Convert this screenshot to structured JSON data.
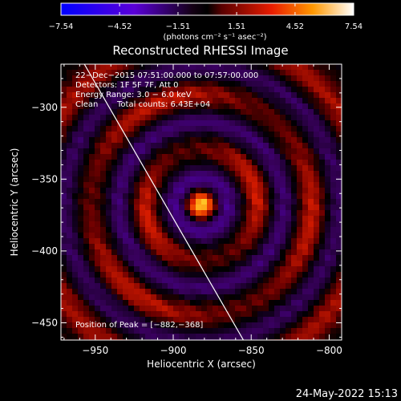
{
  "window": {
    "timestamp": "24-May-2022 15:13"
  },
  "colorbar": {
    "tick_labels": [
      "−7.54",
      "−4.52",
      "−1.51",
      "1.51",
      "4.52",
      "7.54"
    ],
    "ticks": [
      -7.54,
      -4.52,
      -1.51,
      1.51,
      4.52,
      7.54
    ],
    "range": [
      -7.54,
      7.54
    ],
    "label": "(photons cm⁻² s⁻¹ asec⁻²)",
    "colormap": "blue-black-red-yellow-white"
  },
  "chart_data": {
    "type": "heatmap",
    "title": "Reconstructed RHESSI Image",
    "xlabel": "Heliocentric X (arcsec)",
    "ylabel": "Heliocentric Y (arcsec)",
    "xlim": [
      -972,
      -792
    ],
    "ylim": [
      -462,
      -270
    ],
    "xticks": [
      -950,
      -900,
      -850,
      -800
    ],
    "yticks": [
      -300,
      -350,
      -400,
      -450
    ],
    "xtick_labels": [
      "−950",
      "−900",
      "−850",
      "−800"
    ],
    "ytick_labels": [
      "−300",
      "−350",
      "−400",
      "−450"
    ],
    "annotations": [
      "22−Dec−2015 07:51:00.000 to 07:57:00.000",
      "Detectors: 1F 5F 7F, Att 0",
      "Energy Range: 3.0 − 6.0 keV",
      "Clean",
      "Total counts: 6.43E+04"
    ],
    "peak_label": "Position of Peak = [−882,−368]",
    "peak": [
      -882,
      -368
    ],
    "limb_line": [
      [
        -957,
        -270
      ],
      [
        -855,
        -462
      ]
    ],
    "colors": {
      "background": "#000000",
      "text": "#ffffff",
      "limb": "#ffffff"
    }
  }
}
